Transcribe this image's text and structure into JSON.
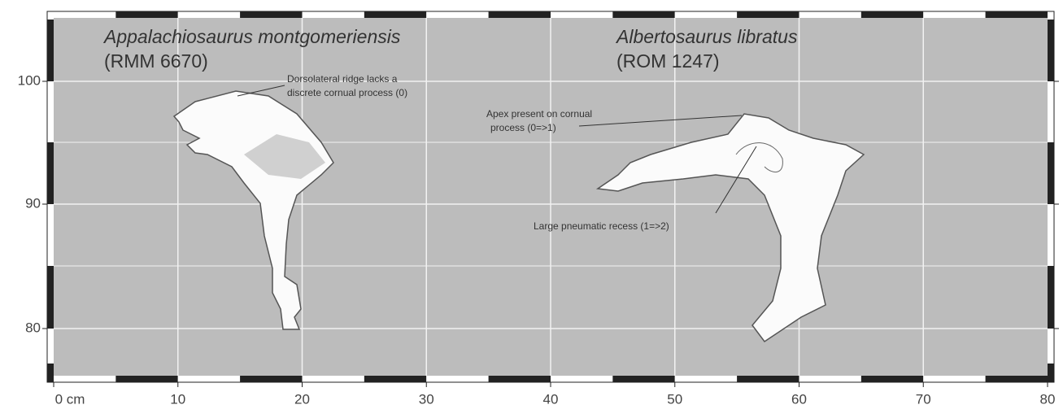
{
  "specimens": [
    {
      "name": "Appalachiosaurus montgomeriensis",
      "number": "(RMM 6670)"
    },
    {
      "name": "Albertosaurus libratus",
      "number": "(ROM 1247)"
    }
  ],
  "annotations": [
    {
      "lines": [
        "Dorsolateral ridge lacks a",
        "discrete cornual process (0)"
      ]
    },
    {
      "lines": [
        "Apex  present on cornual",
        "process (0=>1)"
      ]
    },
    {
      "lines": [
        "Large pneumatic recess (1=>2)"
      ]
    }
  ],
  "axes": {
    "x_ticks": [
      "0 cm",
      "10",
      "20",
      "30",
      "40",
      "50",
      "60",
      "70",
      "80"
    ],
    "y_ticks": [
      "100",
      "90",
      "80"
    ]
  }
}
